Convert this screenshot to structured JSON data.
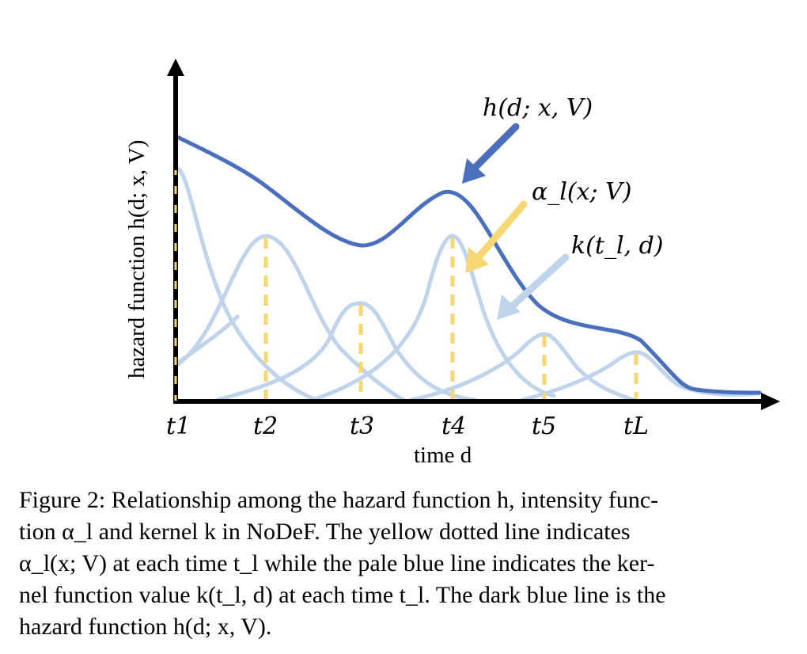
{
  "figure": {
    "y_axis_label": "hazard function h(d; x, V)",
    "x_axis_label": "time d",
    "ticks": [
      "t1",
      "t2",
      "t3",
      "t4",
      "t5",
      "tL"
    ],
    "annotations": {
      "hazard": "h(d; x, V)",
      "alpha": "α_l(x; V)",
      "kernel": "k(t_l, d)"
    },
    "colors": {
      "hazard_line": "#4a6fbd",
      "kernel_line": "#bfd3ea",
      "alpha_line": "#f7d774",
      "axis": "#000000"
    }
  },
  "caption": {
    "lines": [
      "Figure 2: Relationship among the hazard function h, intensity func-",
      "tion α_l and kernel k in NoDeF. The yellow dotted line indicates",
      "α_l(x; V) at each time t_l while the pale blue line indicates the ker-",
      "nel function value k(t_l, d) at each time t_l. The dark blue line is the",
      "hazard function h(d; x, V)."
    ]
  }
}
